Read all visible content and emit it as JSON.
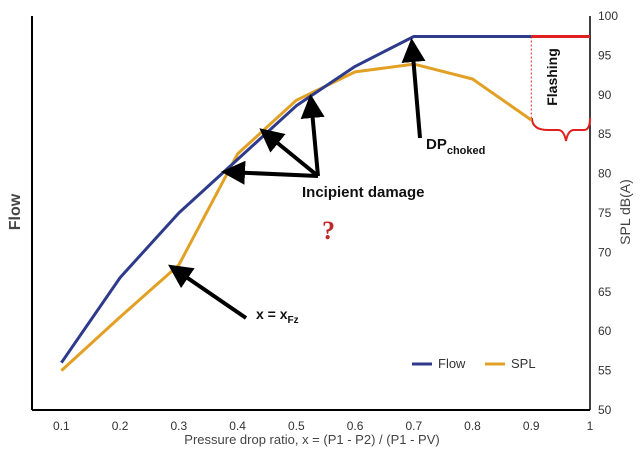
{
  "chart_data": {
    "type": "line",
    "title": "",
    "xlabel": "Pressure drop ratio, x = (P1 - P2) / (P1 - PV)",
    "ylabel_left": "Flow",
    "ylabel_right": "SPL dB(A)",
    "x": [
      0.1,
      0.2,
      0.3,
      0.4,
      0.5,
      0.6,
      0.7,
      0.8,
      0.9,
      1.0
    ],
    "x_ticks": [
      "0.1",
      "0.2",
      "0.3",
      "0.4",
      "0.5",
      "0.6",
      "0.7",
      "0.8",
      "0.9",
      "1"
    ],
    "xlim": [
      0.05,
      1.0
    ],
    "y_right_ticks": [
      50,
      55,
      60,
      65,
      70,
      75,
      80,
      85,
      90,
      95,
      100
    ],
    "y_right_lim": [
      50,
      100
    ],
    "grid": false,
    "legend_position": "bottom-right",
    "colors": {
      "flow": "#2e3a8c",
      "spl": "#e2a125",
      "flashing": "#e02020",
      "question": "#c0282c"
    },
    "series": [
      {
        "name": "Flow",
        "x": [
          0.1,
          0.2,
          0.3,
          0.4,
          0.5,
          0.6,
          0.7,
          0.8,
          0.9
        ],
        "values": [
          56,
          66.8,
          75,
          81.8,
          88.6,
          93.6,
          97.4,
          97.4,
          97.4
        ]
      },
      {
        "name": "SPL",
        "x": [
          0.1,
          0.2,
          0.3,
          0.4,
          0.5,
          0.6,
          0.7,
          0.8,
          0.9
        ],
        "values": [
          55,
          61.8,
          68.4,
          82.5,
          89.3,
          92.9,
          93.9,
          92,
          86.8
        ]
      }
    ],
    "flashing_line": {
      "x": [
        0.9,
        1.0
      ],
      "y": 97.4
    },
    "annotations": {
      "incipient_damage": "Incipient damage",
      "x_fz_main": "x = x",
      "x_fz_sub": "Fz",
      "dp_main": "DP",
      "dp_sub": "choked",
      "flashing": "Flashing",
      "question": "?"
    }
  }
}
